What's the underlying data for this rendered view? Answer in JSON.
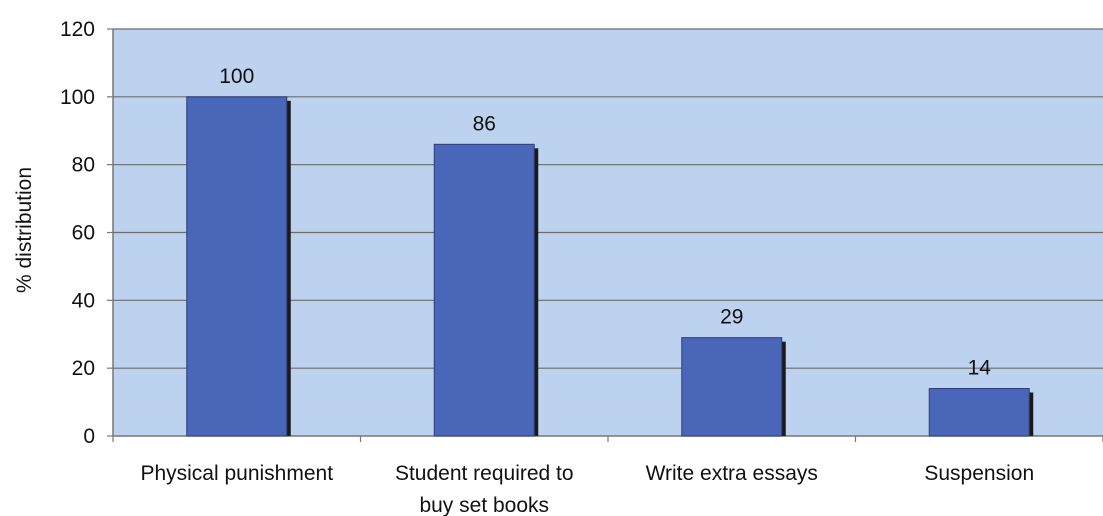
{
  "chart_data": {
    "type": "bar",
    "title": "",
    "xlabel": "",
    "ylabel": "% distribution",
    "categories": [
      [
        "Physical punishment"
      ],
      [
        "Student required to",
        "buy set books"
      ],
      [
        "Write extra essays"
      ],
      [
        "Suspension"
      ]
    ],
    "values": [
      100,
      86,
      29,
      14
    ],
    "data_labels": [
      "100",
      "86",
      "29",
      "14"
    ],
    "ylim": [
      0,
      120
    ],
    "yticks": [
      0,
      20,
      40,
      60,
      80,
      100,
      120
    ],
    "grid": true,
    "legend": "none",
    "colors": {
      "plot_background": "#bcd2ee",
      "bar_fill": "#4a66b8",
      "bar_shadow": "#1a1a1a",
      "grid": "#6d6d6d",
      "axis": "#777777"
    }
  }
}
